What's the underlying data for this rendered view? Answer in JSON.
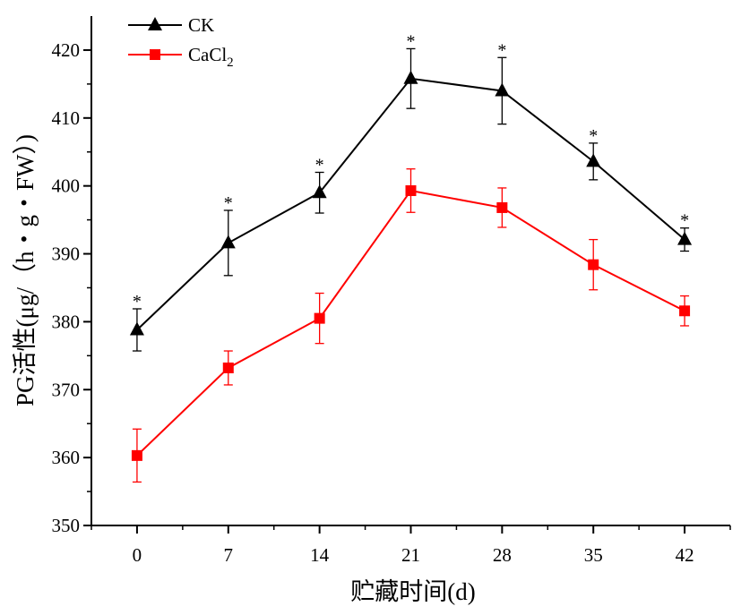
{
  "chart_data": {
    "type": "line",
    "xlabel": "贮藏时间(d)",
    "ylabel": "PG活性(μg/（h・g・FW）)",
    "x": [
      0,
      7,
      14,
      21,
      28,
      35,
      42
    ],
    "xlim": [
      -3.5,
      45.5
    ],
    "ylim": [
      350,
      425
    ],
    "y_ticks": [
      350,
      360,
      370,
      380,
      390,
      400,
      410,
      420
    ],
    "series": [
      {
        "name": "CK",
        "name_sub": "",
        "color": "#000000",
        "marker": "triangle",
        "values": [
          378.8,
          391.6,
          399.0,
          415.8,
          414.0,
          403.6,
          392.1
        ],
        "errors": [
          3.1,
          4.8,
          3.0,
          4.4,
          4.9,
          2.7,
          1.7
        ],
        "significance": [
          "*",
          "*",
          "*",
          "*",
          "*",
          "*",
          "*"
        ]
      },
      {
        "name": "CaCl",
        "name_sub": "2",
        "color": "#ff0000",
        "marker": "square",
        "values": [
          360.3,
          373.2,
          380.5,
          399.3,
          396.8,
          388.4,
          381.6
        ],
        "errors": [
          3.9,
          2.5,
          3.7,
          3.2,
          2.9,
          3.7,
          2.2
        ]
      }
    ],
    "legend": "top-left",
    "grid": false
  }
}
